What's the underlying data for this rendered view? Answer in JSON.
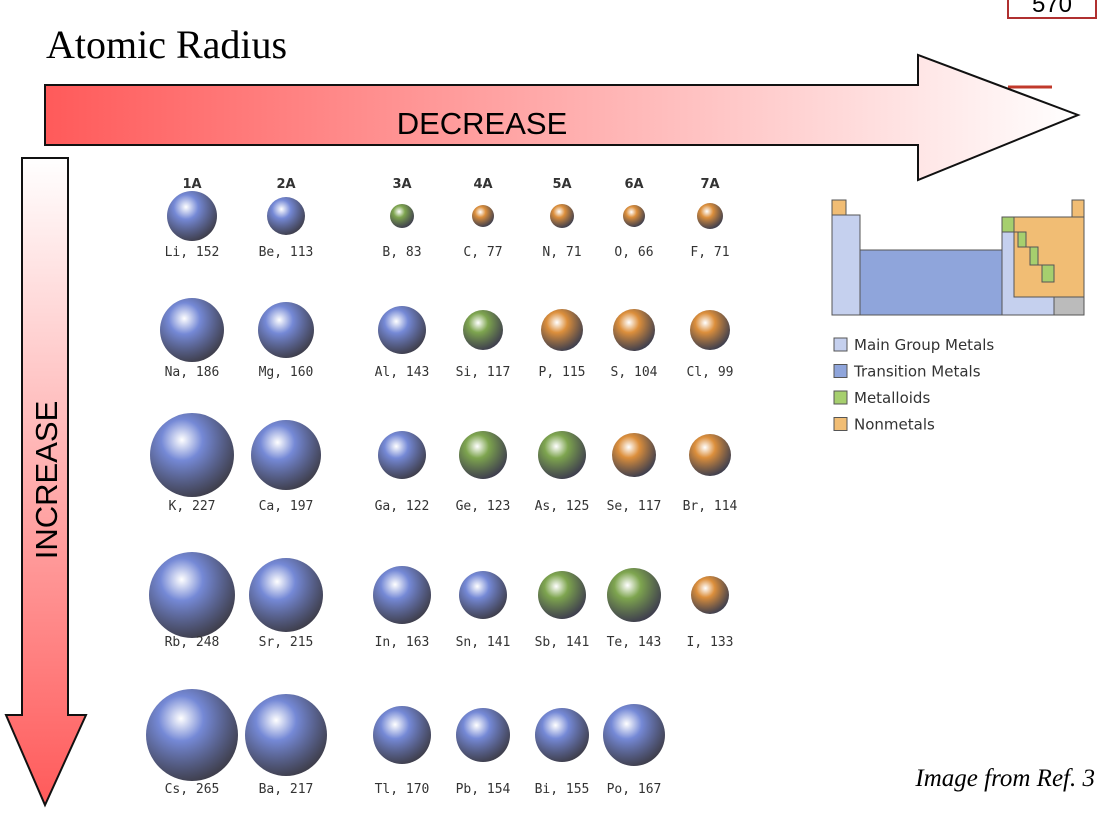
{
  "header": {
    "title": "Atomic Radius",
    "page_number": "570"
  },
  "arrows": {
    "horizontal": "DECREASE",
    "vertical": "INCREASE"
  },
  "groups": [
    "1A",
    "2A",
    "3A",
    "4A",
    "5A",
    "6A",
    "7A"
  ],
  "sphere_colors": {
    "metal": "#7589d6",
    "metalloid": "#7ea54f",
    "nonmetal": "#dc8f3c"
  },
  "rows": [
    [
      {
        "label": "Li, 152",
        "kind": "metal"
      },
      {
        "label": "Be, 113",
        "kind": "metal"
      },
      {
        "label": "B, 83",
        "kind": "metalloid"
      },
      {
        "label": "C, 77",
        "kind": "nonmetal"
      },
      {
        "label": "N, 71",
        "kind": "nonmetal"
      },
      {
        "label": "O, 66",
        "kind": "nonmetal"
      },
      {
        "label": "F, 71",
        "kind": "nonmetal"
      }
    ],
    [
      {
        "label": "Na, 186",
        "kind": "metal"
      },
      {
        "label": "Mg, 160",
        "kind": "metal"
      },
      {
        "label": "Al, 143",
        "kind": "metal"
      },
      {
        "label": "Si, 117",
        "kind": "metalloid"
      },
      {
        "label": "P, 115",
        "kind": "nonmetal"
      },
      {
        "label": "S, 104",
        "kind": "nonmetal"
      },
      {
        "label": "Cl, 99",
        "kind": "nonmetal"
      }
    ],
    [
      {
        "label": "K, 227",
        "kind": "metal"
      },
      {
        "label": "Ca, 197",
        "kind": "metal"
      },
      {
        "label": "Ga, 122",
        "kind": "metal"
      },
      {
        "label": "Ge, 123",
        "kind": "metalloid"
      },
      {
        "label": "As, 125",
        "kind": "metalloid"
      },
      {
        "label": "Se, 117",
        "kind": "nonmetal"
      },
      {
        "label": "Br, 114",
        "kind": "nonmetal"
      }
    ],
    [
      {
        "label": "Rb, 248",
        "kind": "metal"
      },
      {
        "label": "Sr, 215",
        "kind": "metal"
      },
      {
        "label": "In, 163",
        "kind": "metal"
      },
      {
        "label": "Sn, 141",
        "kind": "metal"
      },
      {
        "label": "Sb, 141",
        "kind": "metalloid"
      },
      {
        "label": "Te, 143",
        "kind": "metalloid"
      },
      {
        "label": "I, 133",
        "kind": "nonmetal"
      }
    ],
    [
      {
        "label": "Cs, 265",
        "kind": "metal"
      },
      {
        "label": "Ba, 217",
        "kind": "metal"
      },
      {
        "label": "Tl, 170",
        "kind": "metal"
      },
      {
        "label": "Pb, 154",
        "kind": "metal"
      },
      {
        "label": "Bi, 155",
        "kind": "metal"
      },
      {
        "label": "Po, 167",
        "kind": "metal"
      }
    ]
  ],
  "legend": [
    {
      "label": "Main Group Metals",
      "color": "#c5d0ee"
    },
    {
      "label": "Transition Metals",
      "color": "#8fa5db"
    },
    {
      "label": "Metalloids",
      "color": "#a6cf6e"
    },
    {
      "label": "Nonmetals",
      "color": "#f1bd74"
    }
  ],
  "credit": "Image from Ref. 3"
}
